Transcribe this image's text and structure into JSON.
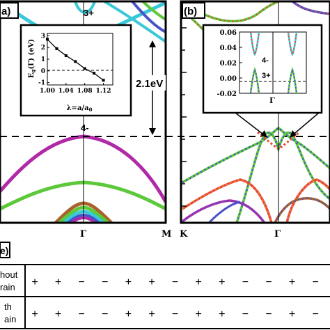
{
  "panel_a": {
    "label": "a)",
    "band_labels": [
      "3+",
      "4-"
    ],
    "gap_label": "2.1eV",
    "x_ticks": [
      "Γ",
      "M"
    ]
  },
  "inset_a": {
    "ylabel": "E_g(Γ) (eV)",
    "xlabel": "λ=a/a_0",
    "x_ticks": [
      "1.00",
      "1.04",
      "1.08",
      "1.12"
    ],
    "y_ticks": [
      "3",
      "2",
      "1",
      "0",
      "-1"
    ]
  },
  "panel_b": {
    "label": "(b)",
    "x_ticks": [
      "K",
      "Γ"
    ]
  },
  "inset_b": {
    "y_ticks": [
      "0.06",
      "0.04",
      "0.02",
      "0.00",
      "-0.02"
    ],
    "band_labels": [
      "4-",
      "3+"
    ],
    "x_tick": "Γ"
  },
  "panel_c": {
    "label": "e)",
    "rows": [
      {
        "label_line1": "hout",
        "label_line2": "rain",
        "signs": [
          "+",
          "+",
          "−",
          "−",
          "+",
          "+",
          "−",
          "+",
          "+",
          "−",
          "−",
          "+",
          "−"
        ]
      },
      {
        "label_line1": "th",
        "label_line2": "ain",
        "signs": [
          "+",
          "+",
          "−",
          "−",
          "+",
          "+",
          "−",
          "+",
          "+",
          "−",
          "−",
          "+",
          "−"
        ]
      }
    ]
  },
  "colors": {
    "magenta": "#b02aa8",
    "green": "#5cc83a",
    "cyan": "#38c8d8",
    "blue": "#4a52c8",
    "brown": "#a8622a",
    "red_dots": "#e8483a",
    "orange": "#e8882a"
  },
  "chart_data": [
    {
      "type": "line",
      "panel": "inset_a",
      "xlabel": "λ=a/a_0",
      "ylabel": "E_g(Γ) (eV)",
      "x": [
        1.0,
        1.02,
        1.04,
        1.06,
        1.08,
        1.1,
        1.12
      ],
      "values": [
        2.7,
        1.9,
        1.3,
        0.8,
        0.2,
        -0.2,
        -0.8
      ],
      "xlim": [
        1.0,
        1.14
      ],
      "ylim": [
        -1.2,
        3.2
      ]
    }
  ]
}
